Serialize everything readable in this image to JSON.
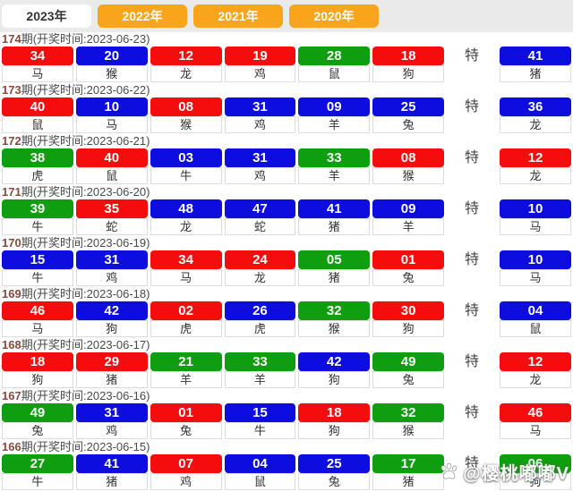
{
  "tabs": [
    {
      "label": "2023年",
      "active": true
    },
    {
      "label": "2022年",
      "active": false
    },
    {
      "label": "2021年",
      "active": false
    },
    {
      "label": "2020年",
      "active": false
    }
  ],
  "special_label": "特",
  "watermark": {
    "icon": "paw-icon",
    "text": "@樱桃嘟嘟V"
  },
  "colors": {
    "red": "#f50d0d",
    "blue": "#0d0ddf",
    "green": "#0f9e0f",
    "tab_orange": "#f9a41b"
  },
  "draws": [
    {
      "period": "174",
      "info": "期(开奖时间:2023-06-23)",
      "balls": [
        {
          "n": "34",
          "c": "red",
          "z": "马"
        },
        {
          "n": "20",
          "c": "blue",
          "z": "猴"
        },
        {
          "n": "12",
          "c": "red",
          "z": "龙"
        },
        {
          "n": "19",
          "c": "red",
          "z": "鸡"
        },
        {
          "n": "28",
          "c": "green",
          "z": "鼠"
        },
        {
          "n": "18",
          "c": "red",
          "z": "狗"
        }
      ],
      "special": {
        "n": "41",
        "c": "blue",
        "z": "猪"
      }
    },
    {
      "period": "173",
      "info": "期(开奖时间:2023-06-22)",
      "balls": [
        {
          "n": "40",
          "c": "red",
          "z": "鼠"
        },
        {
          "n": "10",
          "c": "blue",
          "z": "马"
        },
        {
          "n": "08",
          "c": "red",
          "z": "猴"
        },
        {
          "n": "31",
          "c": "blue",
          "z": "鸡"
        },
        {
          "n": "09",
          "c": "blue",
          "z": "羊"
        },
        {
          "n": "25",
          "c": "blue",
          "z": "兔"
        }
      ],
      "special": {
        "n": "36",
        "c": "blue",
        "z": "龙"
      }
    },
    {
      "period": "172",
      "info": "期(开奖时间:2023-06-21)",
      "balls": [
        {
          "n": "38",
          "c": "green",
          "z": "虎"
        },
        {
          "n": "40",
          "c": "red",
          "z": "鼠"
        },
        {
          "n": "03",
          "c": "blue",
          "z": "牛"
        },
        {
          "n": "31",
          "c": "blue",
          "z": "鸡"
        },
        {
          "n": "33",
          "c": "green",
          "z": "羊"
        },
        {
          "n": "08",
          "c": "red",
          "z": "猴"
        }
      ],
      "special": {
        "n": "12",
        "c": "red",
        "z": "龙"
      }
    },
    {
      "period": "171",
      "info": "期(开奖时间:2023-06-20)",
      "balls": [
        {
          "n": "39",
          "c": "green",
          "z": "牛"
        },
        {
          "n": "35",
          "c": "red",
          "z": "蛇"
        },
        {
          "n": "48",
          "c": "blue",
          "z": "龙"
        },
        {
          "n": "47",
          "c": "blue",
          "z": "蛇"
        },
        {
          "n": "41",
          "c": "blue",
          "z": "猪"
        },
        {
          "n": "09",
          "c": "blue",
          "z": "羊"
        }
      ],
      "special": {
        "n": "10",
        "c": "blue",
        "z": "马"
      }
    },
    {
      "period": "170",
      "info": "期(开奖时间:2023-06-19)",
      "balls": [
        {
          "n": "15",
          "c": "blue",
          "z": "牛"
        },
        {
          "n": "31",
          "c": "blue",
          "z": "鸡"
        },
        {
          "n": "34",
          "c": "red",
          "z": "马"
        },
        {
          "n": "24",
          "c": "red",
          "z": "龙"
        },
        {
          "n": "05",
          "c": "green",
          "z": "猪"
        },
        {
          "n": "01",
          "c": "red",
          "z": "兔"
        }
      ],
      "special": {
        "n": "10",
        "c": "blue",
        "z": "马"
      }
    },
    {
      "period": "169",
      "info": "期(开奖时间:2023-06-18)",
      "balls": [
        {
          "n": "46",
          "c": "red",
          "z": "马"
        },
        {
          "n": "42",
          "c": "blue",
          "z": "狗"
        },
        {
          "n": "02",
          "c": "red",
          "z": "虎"
        },
        {
          "n": "26",
          "c": "blue",
          "z": "虎"
        },
        {
          "n": "32",
          "c": "green",
          "z": "猴"
        },
        {
          "n": "30",
          "c": "red",
          "z": "狗"
        }
      ],
      "special": {
        "n": "04",
        "c": "blue",
        "z": "鼠"
      }
    },
    {
      "period": "168",
      "info": "期(开奖时间:2023-06-17)",
      "balls": [
        {
          "n": "18",
          "c": "red",
          "z": "狗"
        },
        {
          "n": "29",
          "c": "red",
          "z": "猪"
        },
        {
          "n": "21",
          "c": "green",
          "z": "羊"
        },
        {
          "n": "33",
          "c": "green",
          "z": "羊"
        },
        {
          "n": "42",
          "c": "blue",
          "z": "狗"
        },
        {
          "n": "49",
          "c": "green",
          "z": "兔"
        }
      ],
      "special": {
        "n": "12",
        "c": "red",
        "z": "龙"
      }
    },
    {
      "period": "167",
      "info": "期(开奖时间:2023-06-16)",
      "balls": [
        {
          "n": "49",
          "c": "green",
          "z": "兔"
        },
        {
          "n": "31",
          "c": "blue",
          "z": "鸡"
        },
        {
          "n": "01",
          "c": "red",
          "z": "兔"
        },
        {
          "n": "15",
          "c": "blue",
          "z": "牛"
        },
        {
          "n": "18",
          "c": "red",
          "z": "狗"
        },
        {
          "n": "32",
          "c": "green",
          "z": "猴"
        }
      ],
      "special": {
        "n": "46",
        "c": "red",
        "z": "马"
      }
    },
    {
      "period": "166",
      "info": "期(开奖时间:2023-06-15)",
      "balls": [
        {
          "n": "27",
          "c": "green",
          "z": "牛"
        },
        {
          "n": "41",
          "c": "blue",
          "z": "猪"
        },
        {
          "n": "07",
          "c": "red",
          "z": "鸡"
        },
        {
          "n": "04",
          "c": "blue",
          "z": "鼠"
        },
        {
          "n": "25",
          "c": "blue",
          "z": "兔"
        },
        {
          "n": "17",
          "c": "green",
          "z": "猪"
        }
      ],
      "special": {
        "n": "06",
        "c": "green",
        "z": "狗"
      }
    }
  ]
}
